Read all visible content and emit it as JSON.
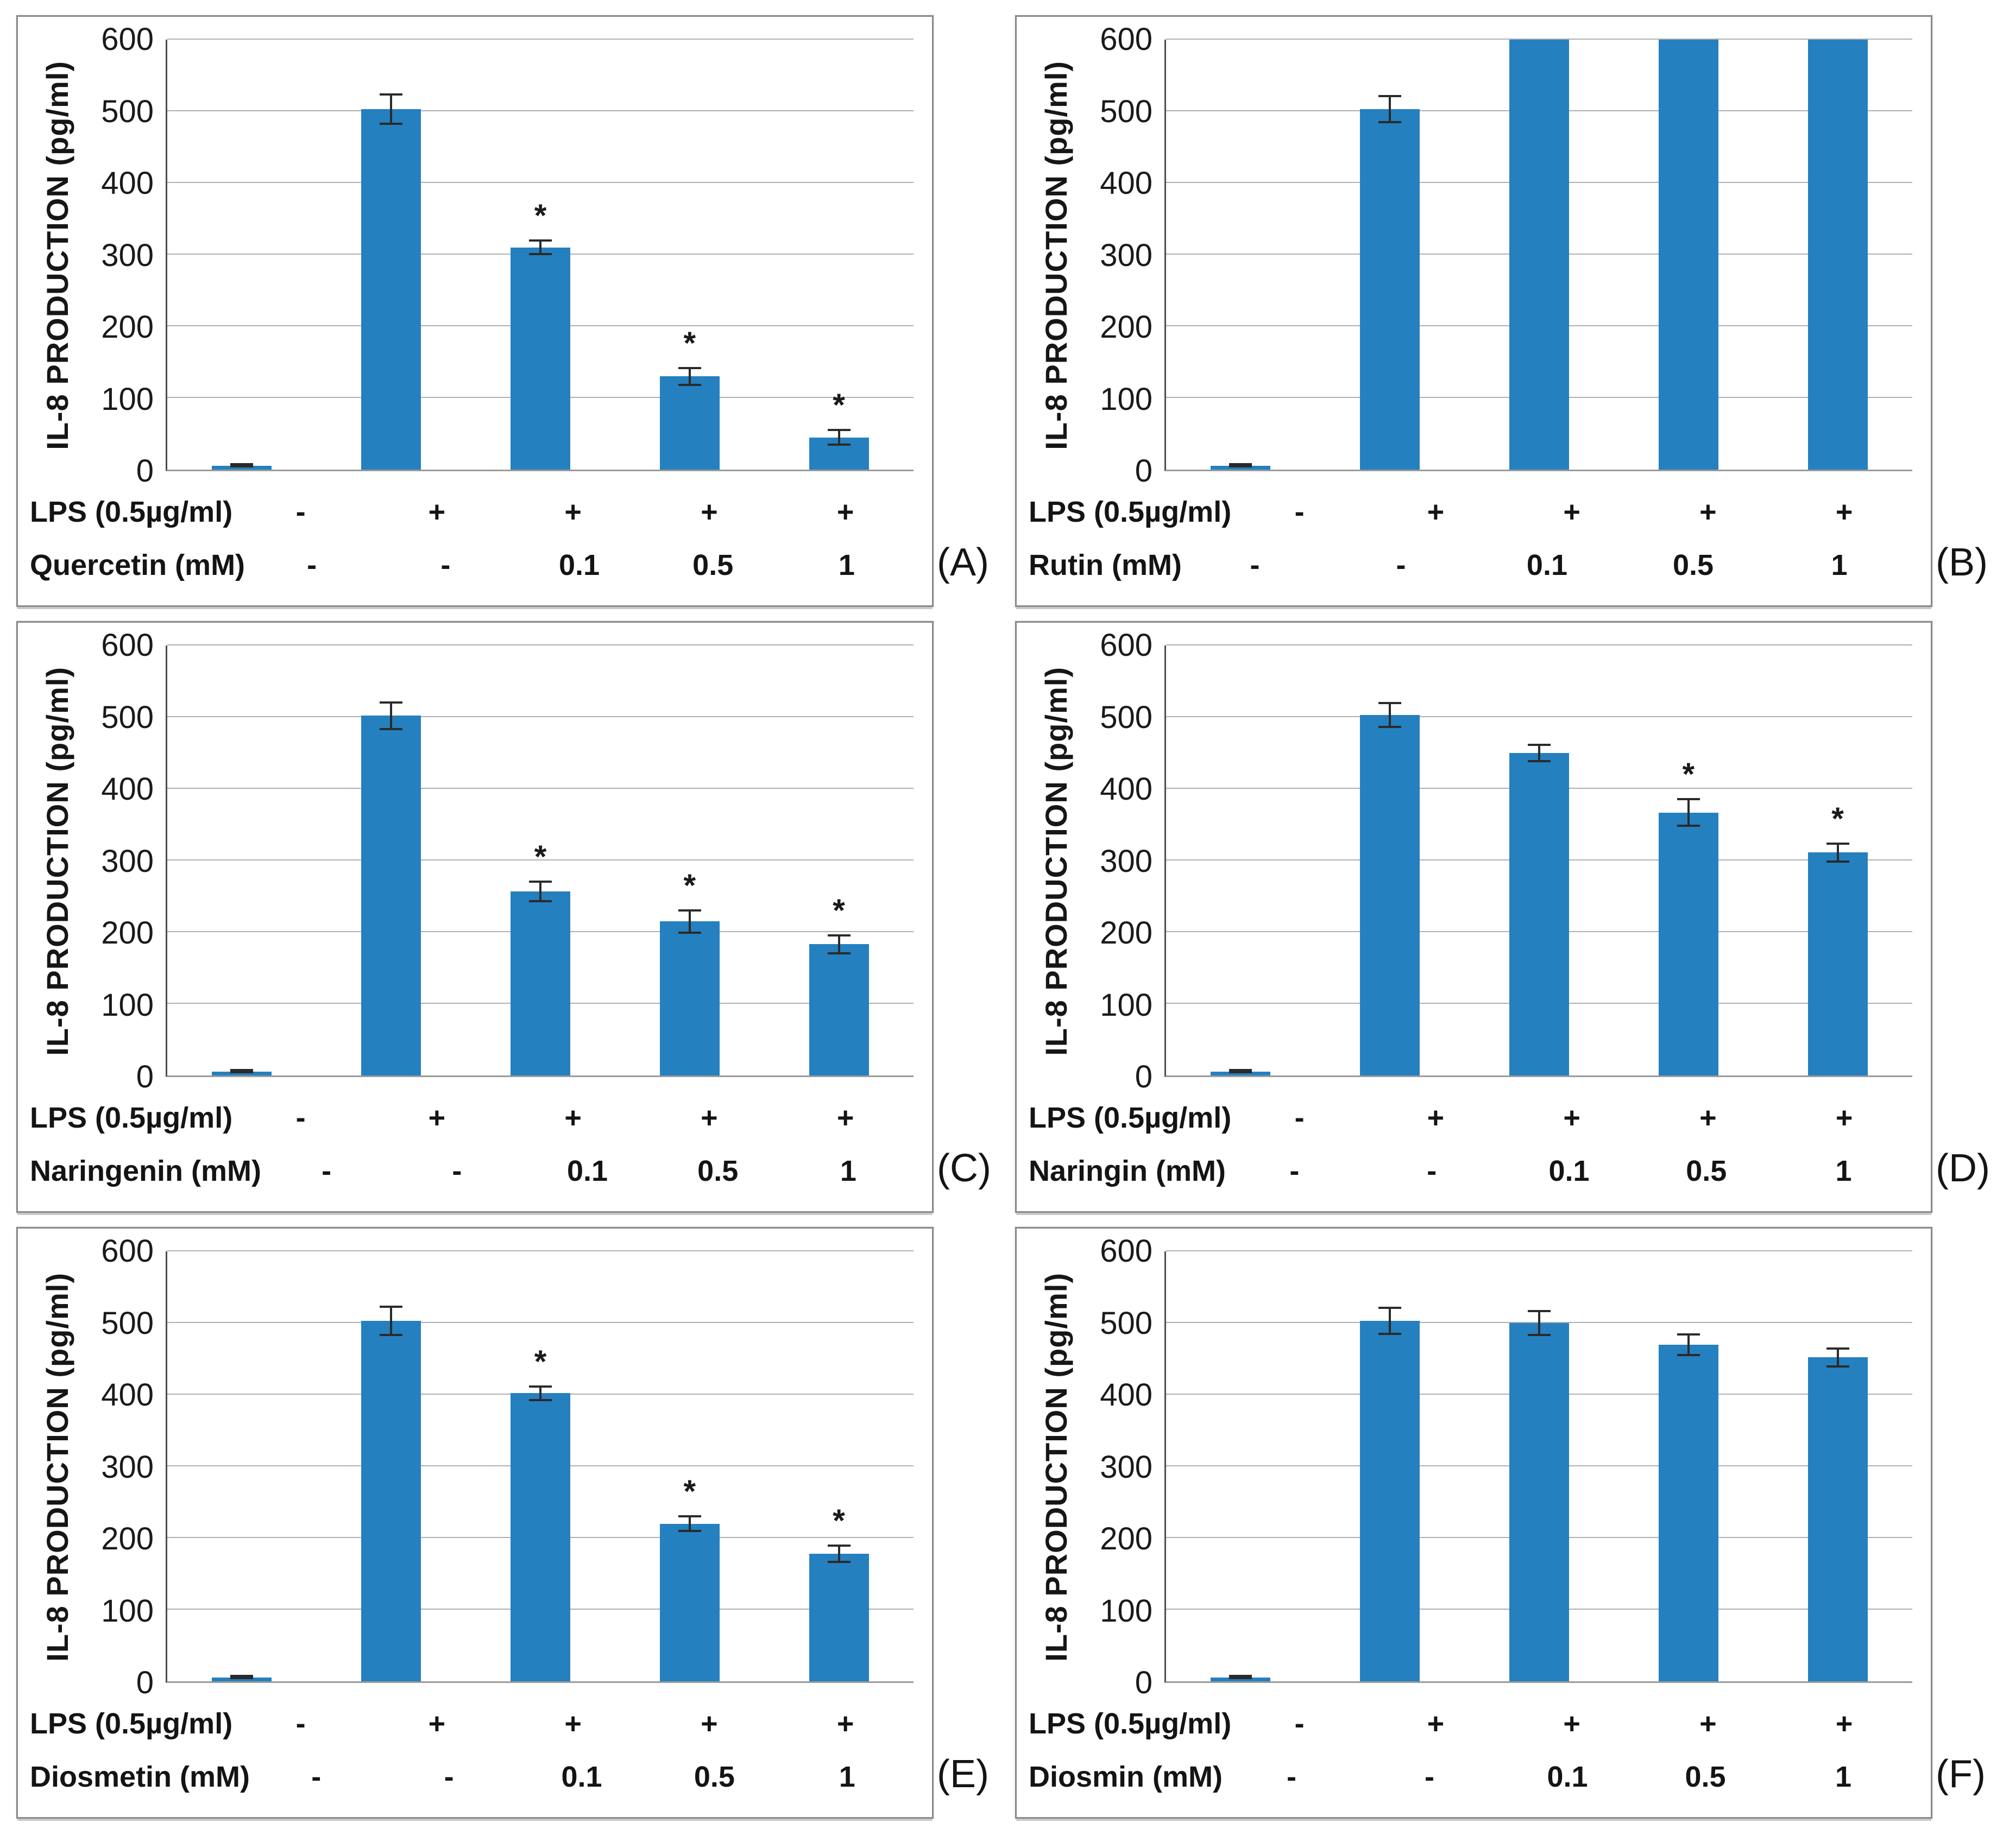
{
  "colors": {
    "bar": "#2580bf",
    "error": "#2a2a2a",
    "grid": "#b0b0b0",
    "axis": "#4d4d4d",
    "baseline": "#9a9a9a",
    "panel_border": "#8a8a8a",
    "text": "#141414"
  },
  "sig_marker": "*",
  "chart_data": [
    {
      "type": "bar",
      "panel_label": "(A)",
      "ylabel": "IL-8 PRODUCTION (pg/ml)",
      "ylim": [
        0,
        600
      ],
      "yticks": [
        0,
        100,
        200,
        300,
        400,
        500,
        600
      ],
      "grid": true,
      "legend": "none",
      "x_rows": [
        {
          "label": "LPS (0.5µg/ml)",
          "cells": [
            "-",
            "+",
            "+",
            "+",
            "+"
          ]
        },
        {
          "label": "Quercetin (mM)",
          "cells": [
            "-",
            "-",
            "0.1",
            "0.5",
            "1"
          ]
        }
      ],
      "values": [
        5,
        503,
        310,
        130,
        45
      ],
      "errors": [
        2,
        22,
        11,
        13,
        12
      ],
      "significant": [
        false,
        false,
        true,
        true,
        true
      ],
      "clipped": [
        false,
        false,
        false,
        false,
        false
      ]
    },
    {
      "type": "bar",
      "panel_label": "(B)",
      "ylabel": "IL-8 PRODUCTION (pg/ml)",
      "ylim": [
        0,
        600
      ],
      "yticks": [
        0,
        100,
        200,
        300,
        400,
        500,
        600
      ],
      "grid": true,
      "legend": "none",
      "x_rows": [
        {
          "label": "LPS (0.5µg/ml)",
          "cells": [
            "-",
            "+",
            "+",
            "+",
            "+"
          ]
        },
        {
          "label": "Rutin (mM)",
          "cells": [
            "-",
            "-",
            "0.1",
            "0.5",
            "1"
          ]
        }
      ],
      "values": [
        5,
        503,
        600,
        600,
        600
      ],
      "errors": [
        2,
        20,
        0,
        0,
        0
      ],
      "significant": [
        false,
        false,
        false,
        false,
        false
      ],
      "clipped": [
        false,
        false,
        true,
        true,
        true
      ]
    },
    {
      "type": "bar",
      "panel_label": "(C)",
      "ylabel": "IL-8 PRODUCTION (pg/ml)",
      "ylim": [
        0,
        600
      ],
      "yticks": [
        0,
        100,
        200,
        300,
        400,
        500,
        600
      ],
      "grid": true,
      "legend": "none",
      "x_rows": [
        {
          "label": "LPS (0.5µg/ml)",
          "cells": [
            "-",
            "+",
            "+",
            "+",
            "+"
          ]
        },
        {
          "label": "Naringenin (mM)",
          "cells": [
            "-",
            "-",
            "0.1",
            "0.5",
            "1"
          ]
        }
      ],
      "values": [
        5,
        502,
        257,
        215,
        183
      ],
      "errors": [
        2,
        20,
        15,
        17,
        14
      ],
      "significant": [
        false,
        false,
        true,
        true,
        true
      ],
      "clipped": [
        false,
        false,
        false,
        false,
        false
      ]
    },
    {
      "type": "bar",
      "panel_label": "(D)",
      "ylabel": "IL-8 PRODUCTION (pg/ml)",
      "ylim": [
        0,
        600
      ],
      "yticks": [
        0,
        100,
        200,
        300,
        400,
        500,
        600
      ],
      "grid": true,
      "legend": "none",
      "x_rows": [
        {
          "label": "LPS (0.5µg/ml)",
          "cells": [
            "-",
            "+",
            "+",
            "+",
            "+"
          ]
        },
        {
          "label": "Naringin (mM)",
          "cells": [
            "-",
            "-",
            "0.1",
            "0.5",
            "1"
          ]
        }
      ],
      "values": [
        5,
        503,
        450,
        367,
        311
      ],
      "errors": [
        2,
        18,
        13,
        20,
        14
      ],
      "significant": [
        false,
        false,
        false,
        true,
        true
      ],
      "clipped": [
        false,
        false,
        false,
        false,
        false
      ]
    },
    {
      "type": "bar",
      "panel_label": "(E)",
      "ylabel": "IL-8 PRODUCTION (pg/ml)",
      "ylim": [
        0,
        600
      ],
      "yticks": [
        0,
        100,
        200,
        300,
        400,
        500,
        600
      ],
      "grid": true,
      "legend": "none",
      "x_rows": [
        {
          "label": "LPS (0.5µg/ml)",
          "cells": [
            "-",
            "+",
            "+",
            "+",
            "+"
          ]
        },
        {
          "label": "Diosmetin (mM)",
          "cells": [
            "-",
            "-",
            "0.1",
            "0.5",
            "1"
          ]
        }
      ],
      "values": [
        5,
        503,
        402,
        220,
        178
      ],
      "errors": [
        2,
        21,
        11,
        12,
        13
      ],
      "significant": [
        false,
        false,
        true,
        true,
        true
      ],
      "clipped": [
        false,
        false,
        false,
        false,
        false
      ]
    },
    {
      "type": "bar",
      "panel_label": "(F)",
      "ylabel": "IL-8 PRODUCTION (pg/ml)",
      "ylim": [
        0,
        600
      ],
      "yticks": [
        0,
        100,
        200,
        300,
        400,
        500,
        600
      ],
      "grid": true,
      "legend": "none",
      "x_rows": [
        {
          "label": "LPS (0.5µg/ml)",
          "cells": [
            "-",
            "+",
            "+",
            "+",
            "+"
          ]
        },
        {
          "label": "Diosmin (mM)",
          "cells": [
            "-",
            "-",
            "0.1",
            "0.5",
            "1"
          ]
        }
      ],
      "values": [
        5,
        503,
        500,
        470,
        452
      ],
      "errors": [
        2,
        20,
        18,
        16,
        14
      ],
      "significant": [
        false,
        false,
        false,
        false,
        false
      ],
      "clipped": [
        false,
        false,
        false,
        false,
        false
      ]
    }
  ]
}
